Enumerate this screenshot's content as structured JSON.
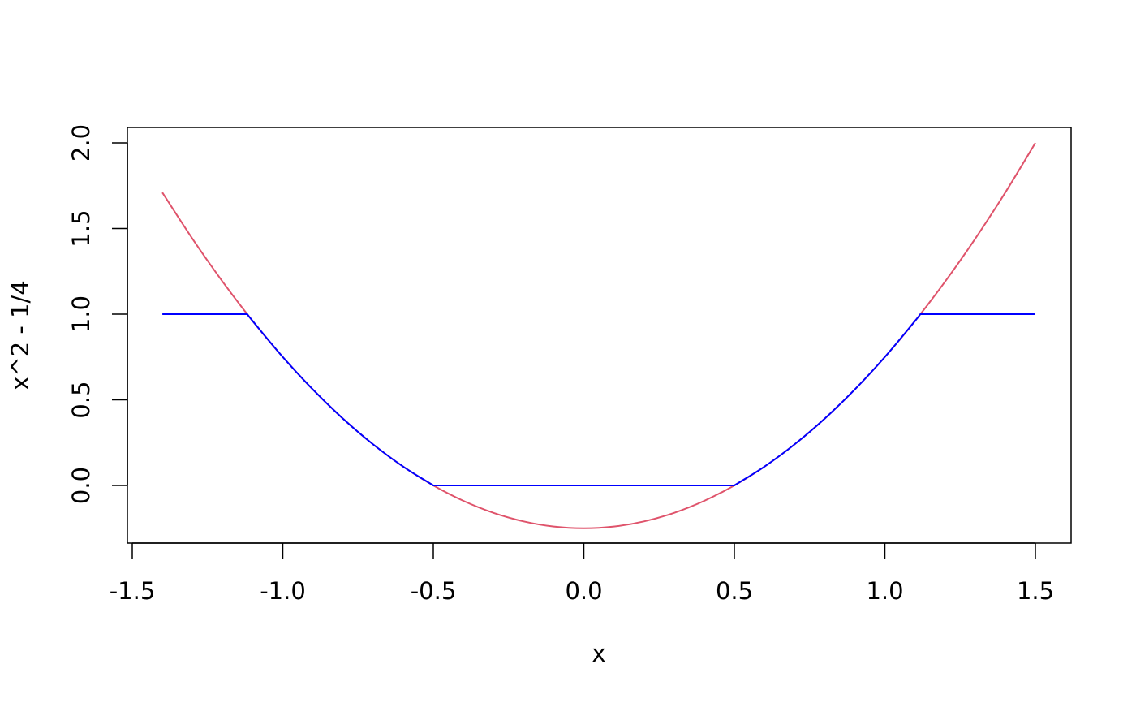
{
  "chart_data": {
    "type": "line",
    "title": "",
    "xlabel": "x",
    "ylabel": "x^2 - 1/4",
    "xlim": [
      -1.5,
      1.5
    ],
    "ylim": [
      -0.25,
      2.0
    ],
    "x_ticks": [
      -1.5,
      -1.0,
      -0.5,
      0.0,
      0.5,
      1.0,
      1.5
    ],
    "x_tick_labels": [
      "-1.5",
      "-1.0",
      "-0.5",
      "0.0",
      "0.5",
      "1.0",
      "1.5"
    ],
    "y_ticks": [
      0.0,
      0.5,
      1.0,
      1.5,
      2.0
    ],
    "y_tick_labels": [
      "0.0",
      "0.5",
      "1.0",
      "1.5",
      "2.0"
    ],
    "grid": false,
    "legend": "none",
    "series": [
      {
        "color": "#DF536B",
        "x": [
          -1.4,
          -1.3,
          -1.2,
          -1.1,
          -1.0,
          -0.9,
          -0.8,
          -0.7,
          -0.6,
          -0.5,
          -0.4,
          -0.3,
          -0.2,
          -0.1,
          0.0,
          0.1,
          0.2,
          0.3,
          0.4,
          0.5,
          0.6,
          0.7,
          0.8,
          0.9,
          1.0,
          1.1,
          1.2,
          1.3,
          1.4,
          1.5
        ],
        "y": [
          1.71,
          1.44,
          1.19,
          0.96,
          0.75,
          0.56,
          0.39,
          0.24,
          0.11,
          0.0,
          -0.09,
          -0.16,
          -0.21,
          -0.24,
          -0.25,
          -0.24,
          -0.21,
          -0.16,
          -0.09,
          0.0,
          0.11,
          0.24,
          0.39,
          0.56,
          0.75,
          0.96,
          1.19,
          1.44,
          1.71,
          2.0
        ]
      },
      {
        "color": "#0000FF",
        "x": [
          -1.4,
          -1.118,
          -1.1,
          -1.0,
          -0.9,
          -0.8,
          -0.7,
          -0.6,
          -0.5,
          0.5,
          0.6,
          0.7,
          0.8,
          0.9,
          1.0,
          1.1,
          1.118,
          1.5
        ],
        "y": [
          1.0,
          1.0,
          0.96,
          0.75,
          0.56,
          0.39,
          0.24,
          0.11,
          0.0,
          0.0,
          0.11,
          0.24,
          0.39,
          0.56,
          0.75,
          0.96,
          1.0,
          1.0
        ]
      }
    ]
  }
}
